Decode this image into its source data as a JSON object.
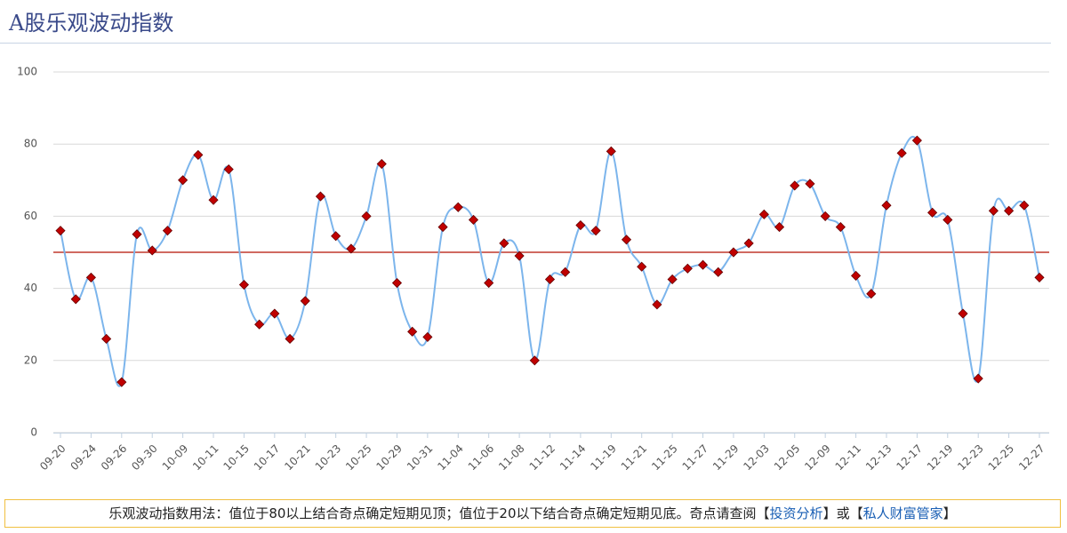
{
  "header": {
    "title": "A股乐观波动指数"
  },
  "chart_data": {
    "type": "line",
    "categories": [
      "09-20",
      null,
      "09-24",
      null,
      "09-26",
      null,
      "09-30",
      null,
      "10-09",
      null,
      "10-11",
      null,
      "10-15",
      null,
      "10-17",
      null,
      "10-21",
      null,
      "10-23",
      null,
      "10-25",
      null,
      "10-29",
      null,
      "10-31",
      null,
      "11-04",
      null,
      "11-06",
      null,
      "11-08",
      null,
      "11-12",
      null,
      "11-14",
      null,
      "11-19",
      null,
      "11-21",
      null,
      "11-25",
      null,
      "11-27",
      null,
      "11-29",
      null,
      "12-03",
      null,
      "12-05",
      null,
      "12-09",
      null,
      "12-11",
      null,
      "12-13",
      null,
      "12-17",
      null,
      "12-19",
      null,
      "12-23",
      null,
      "12-25",
      null,
      "12-27"
    ],
    "values": [
      56,
      37,
      43,
      26,
      14,
      55,
      50.5,
      56,
      70,
      77,
      64.5,
      73,
      41,
      30,
      33,
      26,
      36.5,
      65.5,
      54.5,
      51,
      60,
      74.5,
      41.5,
      28,
      26.5,
      57,
      62.5,
      59,
      41.5,
      52.5,
      49,
      20,
      42.5,
      44.5,
      57.5,
      56,
      78,
      53.5,
      46,
      35.5,
      42.5,
      45.5,
      46.5,
      44.5,
      50,
      52.5,
      60.5,
      57,
      68.5,
      69,
      60,
      57,
      43.5,
      38.5,
      63,
      77.5,
      81,
      61,
      59,
      33,
      15,
      61.5,
      61.5,
      63,
      43
    ],
    "color": "#7cb5ec",
    "marker_color": "#c00000",
    "ylim": [
      0,
      100
    ],
    "yticks": [
      0,
      20,
      40,
      60,
      80,
      100
    ],
    "grid": true,
    "reference_line": {
      "value": 50,
      "color": "#c0392b"
    }
  },
  "footer": {
    "text": "乐观波动指数用法：值位于80以上结合奇点确定短期见顶；值位于20以下结合奇点确定短期见底。奇点请查阅",
    "bracket_open": "【",
    "bracket_close": "】",
    "links": [
      "投资分析",
      "私人财富管家"
    ],
    "conjunction": "或"
  }
}
